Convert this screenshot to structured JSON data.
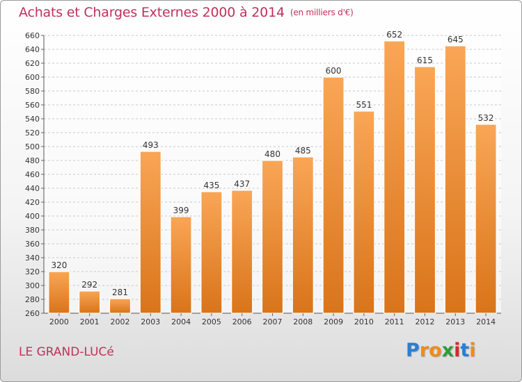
{
  "title": "Achats et Charges Externes 2000 à 2014",
  "unit": "(en milliers d'€)",
  "place": "LE GRAND-LUCé",
  "logo": {
    "letters": [
      "P",
      "r",
      "o",
      "x",
      "i",
      "t",
      "i"
    ],
    "colors": [
      "#2a7fd0",
      "#f08a1c",
      "#f08a1c",
      "#2e9a3e",
      "#d8262c",
      "#2a7fd0",
      "#f08a1c"
    ]
  },
  "colors": {
    "bar_top": "#f9a656",
    "bar_bottom": "#d9741a",
    "title": "#c0305a"
  },
  "chart_data": {
    "type": "bar",
    "title": "Achats et Charges Externes 2000 à 2014",
    "subtitle": "(en milliers d'€)",
    "categories": [
      "2000",
      "2001",
      "2002",
      "2003",
      "2004",
      "2005",
      "2006",
      "2007",
      "2008",
      "2009",
      "2010",
      "2011",
      "2012",
      "2013",
      "2014"
    ],
    "values": [
      320,
      292,
      281,
      493,
      399,
      435,
      437,
      480,
      485,
      600,
      551,
      652,
      615,
      645,
      532
    ],
    "ylim": [
      260,
      660
    ],
    "ytick_step": 20,
    "grid": true,
    "legend": "none"
  }
}
